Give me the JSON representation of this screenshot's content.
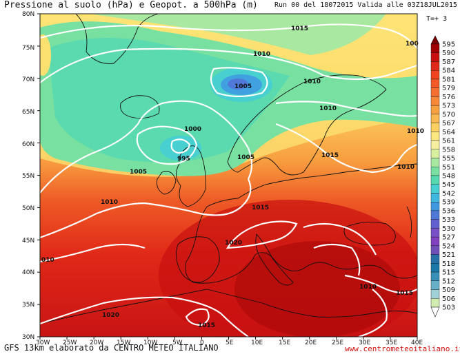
{
  "header": {
    "title": "Pressione al suolo (hPa) e Geopot. a 500hPa (m)",
    "run_info": "Run 00 del 18072015  Valida alle 03Z18JUL2015",
    "timestep": "T=+ 3"
  },
  "footer": {
    "credit": "GFS 13km elaborato da CENTRO METEO ITALIANO",
    "website": "www.centrometeoitaliano.it"
  },
  "map": {
    "lat_labels": [
      "80N",
      "75N",
      "70N",
      "65N",
      "60N",
      "55N",
      "50N",
      "45N",
      "40N",
      "35N",
      "30N"
    ],
    "lon_labels": [
      "30W",
      "25W",
      "20W",
      "15W",
      "10W",
      "5W",
      "0",
      "5E",
      "10E",
      "15E",
      "20E",
      "25E",
      "30E",
      "35E",
      "40E"
    ],
    "isobar_labels": {
      "l1015_north": "1015",
      "l1010_west": "1010",
      "l1005_iceland": "1005",
      "l1010_norway": "1010",
      "l100_edge": "100",
      "l1010_finland": "1010",
      "l1010_russia": "1010",
      "l1000": "1000",
      "l995": "995",
      "l1005_scot": "1005",
      "l1005_north_sea": "1005",
      "l1015_baltic": "1015",
      "l1010_east": "1010",
      "l1010_biscay": "1010",
      "l1015_germany": "1015",
      "l1020_france": "1020",
      "l010_atl": "010",
      "l1015_greece": "1015",
      "l1010_turkey": "1010",
      "l1020_sw": "1020",
      "l1015_africa": "1015"
    }
  },
  "colorbar": {
    "values": [
      "595",
      "590",
      "587",
      "584",
      "581",
      "579",
      "576",
      "573",
      "570",
      "567",
      "564",
      "561",
      "558",
      "555",
      "551",
      "548",
      "545",
      "542",
      "539",
      "536",
      "533",
      "530",
      "527",
      "524",
      "521",
      "518",
      "515",
      "512",
      "509",
      "506",
      "503"
    ],
    "colors": [
      "#7a0000",
      "#a00000",
      "#c81010",
      "#e02818",
      "#ee4420",
      "#f25a28",
      "#f47030",
      "#f68838",
      "#f8a040",
      "#fab850",
      "#fcd060",
      "#fde880",
      "#f6f0a0",
      "#d8f0a0",
      "#a8e8a0",
      "#78e0a0",
      "#58d8b0",
      "#48d0d0",
      "#40b8e0",
      "#4098e0",
      "#5078d8",
      "#6060d0",
      "#7850c8",
      "#8040c0",
      "#7050b8",
      "#2870a8",
      "#1878a8",
      "#3890b8",
      "#68b0c8",
      "#a0d0d8",
      "#d0ecb0"
    ]
  }
}
